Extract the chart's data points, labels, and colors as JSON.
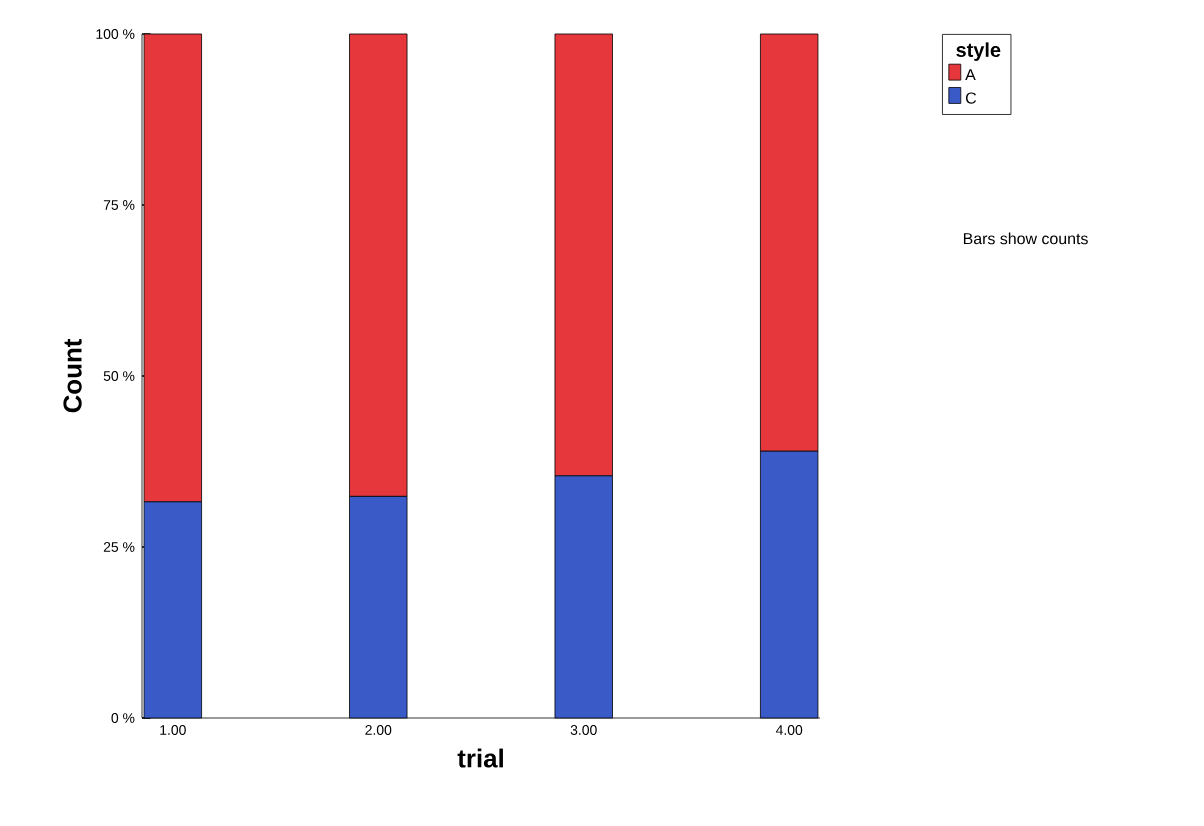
{
  "chart_data": {
    "type": "bar",
    "stacked": true,
    "xlabel": "trial",
    "ylabel": "Count",
    "legend_title": "style",
    "legend": "right",
    "categories": [
      "1.00",
      "2.00",
      "3.00",
      "4.00"
    ],
    "series": [
      {
        "name": "C",
        "color": "#3a5ac8",
        "values": [
          31.6,
          32.4,
          35.4,
          39.0
        ]
      },
      {
        "name": "A",
        "color": "#e6383c",
        "values": [
          68.4,
          67.6,
          64.6,
          61.0
        ]
      }
    ],
    "ylim": [
      0,
      100
    ],
    "yticks": [
      {
        "value": 0,
        "label": "0 %"
      },
      {
        "value": 25,
        "label": "25 %"
      },
      {
        "value": 50,
        "label": "50 %"
      },
      {
        "value": 75,
        "label": "75 %"
      },
      {
        "value": 100,
        "label": "100 %"
      }
    ],
    "annotations": [
      "Bars show counts"
    ]
  }
}
